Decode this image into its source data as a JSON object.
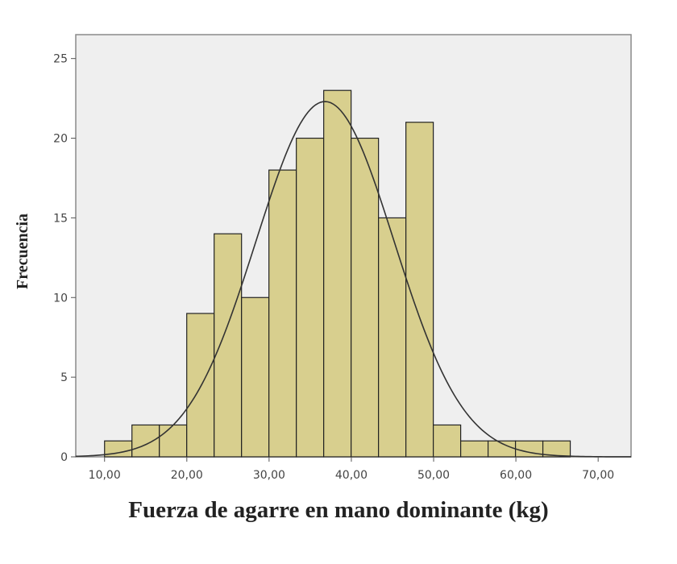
{
  "chart_data": {
    "type": "bar",
    "subtype": "histogram",
    "xlabel": "Fuerza de agarre en mano dominante (kg)",
    "ylabel": "Frecuencia",
    "xlim": [
      6.5,
      74.0
    ],
    "ylim": [
      0,
      26.5
    ],
    "bin_width": 3.33,
    "bin_start": 10.0,
    "values": [
      1,
      2,
      2,
      9,
      14,
      10,
      18,
      20,
      23,
      20,
      15,
      21,
      2,
      1,
      1,
      1,
      1
    ],
    "x_ticks": [
      10,
      20,
      30,
      40,
      50,
      60,
      70
    ],
    "x_tick_labels": [
      "10,00",
      "20,00",
      "30,00",
      "40,00",
      "50,00",
      "60,00",
      "70,00"
    ],
    "y_ticks": [
      0,
      5,
      10,
      15,
      20,
      25
    ],
    "y_tick_labels": [
      "0",
      "5",
      "10",
      "15",
      "20",
      "25"
    ],
    "normal_curve": {
      "mean": 36.8,
      "sd": 8.4,
      "peak": 22.3
    },
    "grid": false,
    "colors": {
      "bar_fill": "#d8cf8e",
      "bar_stroke": "#222222",
      "plot_bg": "#efefef",
      "curve": "#333333",
      "frame": "#8a8a8a"
    }
  }
}
